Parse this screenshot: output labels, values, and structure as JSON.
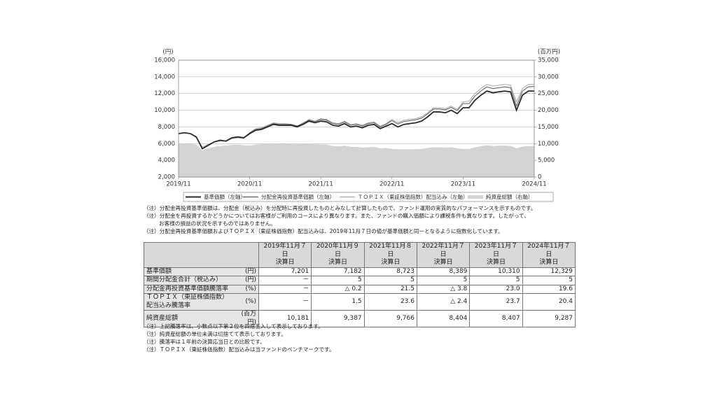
{
  "chart_data": {
    "type": "line",
    "y_unit": "(円)",
    "y2_unit": "(百万円)",
    "x": [
      "2019/11",
      null,
      null,
      null,
      null,
      null,
      null,
      null,
      null,
      null,
      null,
      null,
      "2020/11",
      null,
      null,
      null,
      null,
      null,
      null,
      null,
      null,
      null,
      null,
      null,
      "2021/11",
      null,
      null,
      null,
      null,
      null,
      null,
      null,
      null,
      null,
      null,
      null,
      "2022/11",
      null,
      null,
      null,
      null,
      null,
      null,
      null,
      null,
      null,
      null,
      null,
      "2023/11",
      null,
      null,
      null,
      null,
      null,
      null,
      null,
      null,
      null,
      null,
      null,
      "2024/11"
    ],
    "ylim": [
      2000,
      16000
    ],
    "yticks": [
      {
        "value": 2000,
        "label": "2,000"
      },
      {
        "value": 4000,
        "label": "4,000"
      },
      {
        "value": 6000,
        "label": "6,000"
      },
      {
        "value": 8000,
        "label": "8,000"
      },
      {
        "value": 10000,
        "label": "10,000"
      },
      {
        "value": 12000,
        "label": "12,000"
      },
      {
        "value": 14000,
        "label": "14,000"
      },
      {
        "value": 16000,
        "label": "16,000"
      }
    ],
    "y2lim": [
      0,
      35000
    ],
    "y2ticks": [
      0,
      {
        "value": 5000,
        "label": "5,000"
      },
      {
        "value": 10000,
        "label": "10,000"
      },
      {
        "value": 15000,
        "label": "15,000"
      },
      {
        "value": 20000,
        "label": "20,000"
      },
      {
        "value": 25000,
        "label": "25,000"
      },
      {
        "value": 30000,
        "label": "30,000"
      },
      {
        "value": 35000,
        "label": "35,000"
      }
    ],
    "series": [
      {
        "name": "純資産総額（右軸）",
        "color": "#d3d3d3",
        "axis": "y2",
        "area": true,
        "values": [
          10181,
          10000,
          9900,
          9700,
          8000,
          8600,
          9000,
          9300,
          9400,
          9600,
          9700,
          9500,
          9387,
          9700,
          9800,
          9900,
          10100,
          10000,
          9900,
          9900,
          9800,
          9900,
          9900,
          9800,
          9766,
          9700,
          9300,
          9200,
          9400,
          9000,
          9000,
          8800,
          8900,
          9000,
          8600,
          8700,
          8404,
          8300,
          8300,
          8300,
          8300,
          8400,
          8700,
          8900,
          8900,
          8800,
          8900,
          8600,
          8407,
          8400,
          8900,
          9200,
          9500,
          9300,
          9400,
          9400,
          9300,
          8600,
          9100,
          9300,
          9287
        ]
      },
      {
        "name": "ＴＯＰＩＸ（東証株価指数）配当込み（左軸）",
        "color": "#a8a8a8",
        "values": [
          7200,
          7310,
          7180,
          6700,
          5600,
          5900,
          6200,
          6300,
          6300,
          6600,
          6700,
          6600,
          7330,
          7800,
          7900,
          8200,
          8500,
          8400,
          8400,
          8300,
          8100,
          8500,
          8900,
          8700,
          9000,
          8900,
          8500,
          8400,
          8700,
          8300,
          8400,
          8200,
          8500,
          8600,
          8100,
          8400,
          8900,
          8500,
          8800,
          8900,
          9000,
          9200,
          9700,
          10300,
          10300,
          10200,
          10500,
          10100,
          11000,
          11100,
          12000,
          12600,
          13100,
          12900,
          13000,
          13100,
          13000,
          11000,
          12600,
          13100,
          13100
        ]
      },
      {
        "name": "分配金再投資基準価額（左軸）",
        "color": "#5a5a5a",
        "values": [
          7200,
          7300,
          7210,
          6820,
          5420,
          5820,
          6230,
          6430,
          6330,
          6740,
          6840,
          6740,
          7280,
          7700,
          7800,
          8100,
          8400,
          8300,
          8300,
          8310,
          8110,
          8410,
          8810,
          8610,
          8900,
          8800,
          8400,
          8300,
          8600,
          8200,
          8300,
          8100,
          8400,
          8500,
          8000,
          8300,
          8750,
          8350,
          8650,
          8750,
          8850,
          9050,
          9550,
          10150,
          10150,
          10050,
          10350,
          9950,
          10800,
          10800,
          11700,
          12300,
          12800,
          12600,
          12700,
          12800,
          12700,
          10500,
          12300,
          12800,
          12850
        ]
      },
      {
        "name": "基準価額（左軸）",
        "color": "#2b2b2b",
        "values": [
          7200,
          7300,
          7200,
          6800,
          5400,
          5800,
          6200,
          6400,
          6300,
          6700,
          6800,
          6700,
          7200,
          7600,
          7700,
          8000,
          8300,
          8200,
          8200,
          8200,
          8000,
          8300,
          8700,
          8500,
          8700,
          8600,
          8200,
          8100,
          8400,
          8000,
          8100,
          7900,
          8200,
          8300,
          7800,
          8100,
          8400,
          8000,
          8300,
          8400,
          8500,
          8700,
          9200,
          9800,
          9800,
          9700,
          10000,
          9600,
          10300,
          10300,
          11200,
          11800,
          12300,
          12100,
          12200,
          12300,
          12200,
          10000,
          11800,
          12300,
          12300
        ]
      }
    ]
  },
  "notes": [
    "（注）分配金再投資基準価額は、分配金（税込み）を分配時に再投資したものとみなして計算したもので、ファンド運用の実質的なパフォーマンスを示すものです。",
    "（注）分配金を再投資するかどうかについてはお客様がご利用のコースにより異なります。また、ファンドの購入価額により課税条件も異なります。したがって、",
    "お客様の損益の状況を示すものではありません。",
    "（注）分配金再投資基準価額およびＴＯＰＩＸ（東証株価指数）配当込みは、2019年11月７日の値が基準価額と同一となるように指数化しています。"
  ],
  "table": {
    "header": [
      [
        "2019年11月７日",
        "決算日"
      ],
      [
        "2020年11月９日",
        "決算日"
      ],
      [
        "2021年11月８日",
        "決算日"
      ],
      [
        "2022年11月７日",
        "決算日"
      ],
      [
        "2023年11月７日",
        "決算日"
      ],
      [
        "2024年11月７日",
        "決算日"
      ]
    ],
    "rows": [
      {
        "label": [
          "基準価額"
        ],
        "unit": "(円)",
        "values": [
          "7,201",
          "7,182",
          "8,723",
          "8,389",
          "10,310",
          "12,329"
        ]
      },
      {
        "label": [
          "期間分配金合計（税込み）"
        ],
        "unit": "(円)",
        "values": [
          "－",
          "5",
          "5",
          "5",
          "5",
          "5"
        ]
      },
      {
        "label": [
          "分配金再投資基準価額騰落率"
        ],
        "unit": "(%)",
        "values": [
          "－",
          "△ 0.2",
          "21.5",
          "△ 3.8",
          "23.0",
          "19.6"
        ]
      },
      {
        "label": [
          "ＴＯＰＩＸ（東証株価指数）",
          "配当込み騰落率"
        ],
        "unit": "(%)",
        "values": [
          "－",
          "1.5",
          "23.6",
          "△ 2.4",
          "23.7",
          "20.4"
        ]
      },
      {
        "label": [
          "純資産総額"
        ],
        "unit": "(百万円)",
        "values": [
          "10,181",
          "9,387",
          "9,766",
          "8,404",
          "8,407",
          "9,287"
        ]
      }
    ]
  },
  "footnotes": [
    "（注）上記騰落率は、小数点以下第２位を四捨五入して表示しております。",
    "（注）純資産総額の単位未満は切捨てて表示しております。",
    "（注）騰落率は１年前の決算応当日との比較です。",
    "（注）ＴＯＰＩＸ（東証株価指数）配当込みは当ファンドのベンチマークです。"
  ]
}
